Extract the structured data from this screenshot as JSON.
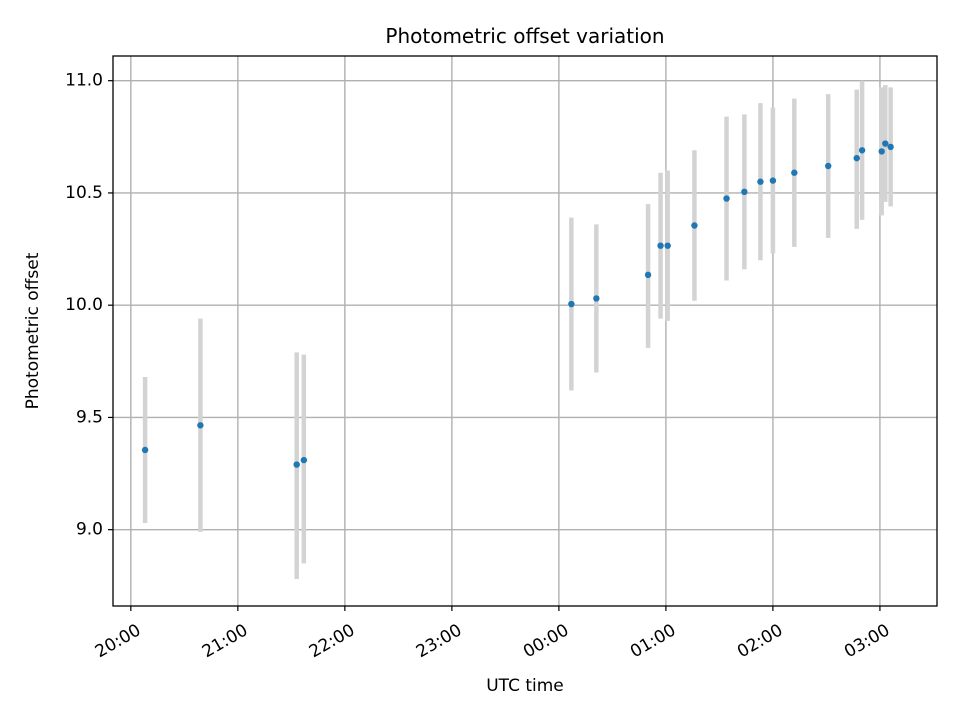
{
  "chart_data": {
    "type": "scatter",
    "title": "Photometric offset variation",
    "xlabel": "UTC time",
    "ylabel": "Photometric offset",
    "x_axis": {
      "kind": "time",
      "start": "2000-01-01T19:50",
      "end": "2000-01-02T03:32",
      "tick_times": [
        "2000-01-01T20:00",
        "2000-01-01T21:00",
        "2000-01-01T22:00",
        "2000-01-01T23:00",
        "2000-01-02T00:00",
        "2000-01-02T01:00",
        "2000-01-02T02:00",
        "2000-01-02T03:00"
      ],
      "tick_labels": [
        "20:00",
        "21:00",
        "22:00",
        "23:00",
        "00:00",
        "01:00",
        "02:00",
        "03:00"
      ]
    },
    "y_axis": {
      "min": 8.66,
      "max": 11.11,
      "ticks": [
        9.0,
        9.5,
        10.0,
        10.5,
        11.0
      ],
      "tick_labels": [
        "9.0",
        "9.5",
        "10.0",
        "10.5",
        "11.0"
      ]
    },
    "grid": true,
    "marker_color": "#1f77b4",
    "errorbar_color": "#d3d3d3",
    "points": [
      {
        "x": "2000-01-01T20:08",
        "y": 9.355,
        "ylow": 9.03,
        "yhigh": 9.68
      },
      {
        "x": "2000-01-01T20:39",
        "y": 9.465,
        "ylow": 8.99,
        "yhigh": 9.94
      },
      {
        "x": "2000-01-01T21:33",
        "y": 9.29,
        "ylow": 8.78,
        "yhigh": 9.79
      },
      {
        "x": "2000-01-01T21:37",
        "y": 9.31,
        "ylow": 8.85,
        "yhigh": 9.78
      },
      {
        "x": "2000-01-02T00:07",
        "y": 10.005,
        "ylow": 9.62,
        "yhigh": 10.39
      },
      {
        "x": "2000-01-02T00:21",
        "y": 10.03,
        "ylow": 9.7,
        "yhigh": 10.36
      },
      {
        "x": "2000-01-02T00:50",
        "y": 10.135,
        "ylow": 9.81,
        "yhigh": 10.45
      },
      {
        "x": "2000-01-02T00:57",
        "y": 10.265,
        "ylow": 9.94,
        "yhigh": 10.59
      },
      {
        "x": "2000-01-02T01:01",
        "y": 10.265,
        "ylow": 9.93,
        "yhigh": 10.6
      },
      {
        "x": "2000-01-02T01:16",
        "y": 10.355,
        "ylow": 10.02,
        "yhigh": 10.69
      },
      {
        "x": "2000-01-02T01:34",
        "y": 10.475,
        "ylow": 10.11,
        "yhigh": 10.84
      },
      {
        "x": "2000-01-02T01:44",
        "y": 10.505,
        "ylow": 10.16,
        "yhigh": 10.85
      },
      {
        "x": "2000-01-02T01:53",
        "y": 10.55,
        "ylow": 10.2,
        "yhigh": 10.9
      },
      {
        "x": "2000-01-02T02:00",
        "y": 10.555,
        "ylow": 10.23,
        "yhigh": 10.88
      },
      {
        "x": "2000-01-02T02:12",
        "y": 10.59,
        "ylow": 10.26,
        "yhigh": 10.92
      },
      {
        "x": "2000-01-02T02:31",
        "y": 10.62,
        "ylow": 10.3,
        "yhigh": 10.94
      },
      {
        "x": "2000-01-02T02:47",
        "y": 10.655,
        "ylow": 10.34,
        "yhigh": 10.96
      },
      {
        "x": "2000-01-02T02:50",
        "y": 10.69,
        "ylow": 10.38,
        "yhigh": 11.0
      },
      {
        "x": "2000-01-02T03:01",
        "y": 10.685,
        "ylow": 10.4,
        "yhigh": 10.97
      },
      {
        "x": "2000-01-02T03:03",
        "y": 10.72,
        "ylow": 10.46,
        "yhigh": 10.98
      },
      {
        "x": "2000-01-02T03:06",
        "y": 10.705,
        "ylow": 10.44,
        "yhigh": 10.97
      }
    ]
  }
}
